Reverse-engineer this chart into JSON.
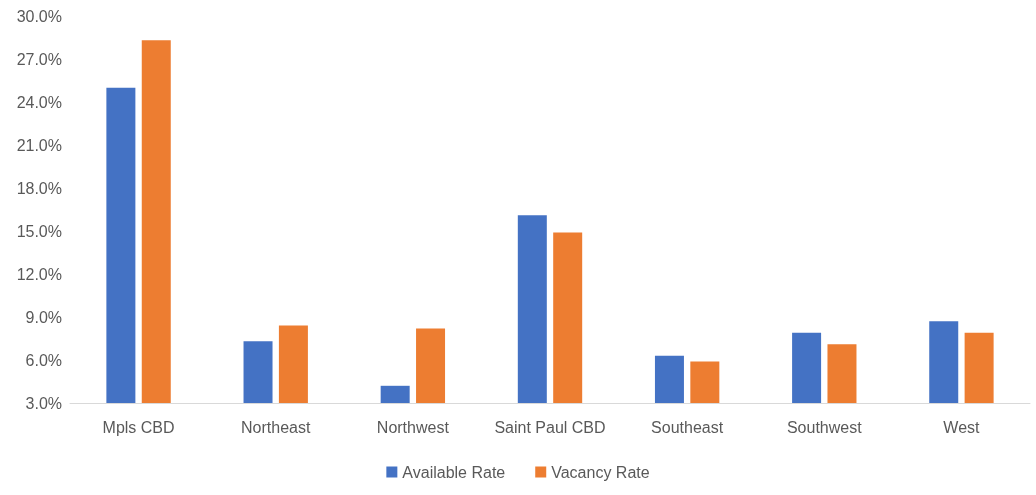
{
  "chart_data": {
    "type": "bar",
    "categories": [
      "Mpls CBD",
      "Northeast",
      "Northwest",
      "Saint Paul CBD",
      "Southeast",
      "Southwest",
      "West"
    ],
    "series": [
      {
        "name": "Available Rate",
        "color": "#4472c4",
        "values": [
          25.0,
          7.3,
          4.2,
          16.1,
          6.3,
          7.9,
          8.7
        ]
      },
      {
        "name": "Vacancy Rate",
        "color": "#ed7d31",
        "values": [
          28.3,
          8.4,
          8.2,
          14.9,
          5.9,
          7.1,
          7.9
        ]
      }
    ],
    "ylim": [
      3,
      30
    ],
    "yticks": [
      {
        "value": 3,
        "label": "3.0%"
      },
      {
        "value": 6,
        "label": "6.0%"
      },
      {
        "value": 9,
        "label": "9.0%"
      },
      {
        "value": 12,
        "label": "12.0%"
      },
      {
        "value": 15,
        "label": "15.0%"
      },
      {
        "value": 18,
        "label": "18.0%"
      },
      {
        "value": 21,
        "label": "21.0%"
      },
      {
        "value": 24,
        "label": "24.0%"
      },
      {
        "value": 27,
        "label": "27.0%"
      },
      {
        "value": 30,
        "label": "30.0%"
      }
    ],
    "grid": false,
    "legend": "bottom"
  }
}
